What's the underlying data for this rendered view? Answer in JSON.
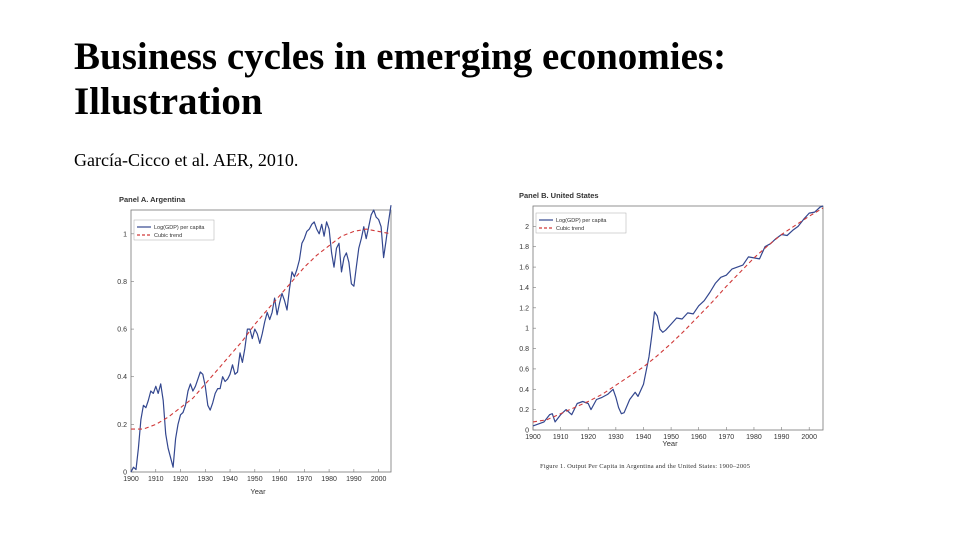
{
  "slide": {
    "title": "Business cycles in emerging economies: Illustration",
    "subtitle": "García-Cicco et al. AER, 2010."
  },
  "chart_data": [
    {
      "type": "line",
      "title": "Panel A. Argentina",
      "xlabel": "Year",
      "ylabel": "",
      "xlim": [
        1900,
        2005
      ],
      "ylim": [
        0,
        1.1
      ],
      "xticks": [
        1900,
        1910,
        1920,
        1930,
        1940,
        1950,
        1960,
        1970,
        1980,
        1990,
        2000
      ],
      "yticks": [
        0,
        0.2,
        0.4,
        0.6,
        0.8,
        1
      ],
      "ytick_labels": [
        "0",
        "0.2",
        "0.4",
        "0.6",
        "0.8",
        "1"
      ],
      "legend": [
        "Log(GDP) per capita",
        "Cubic trend"
      ],
      "legend_position": "top-left",
      "series": [
        {
          "name": "Log(GDP) per capita",
          "color": "#33478f",
          "style": "solid",
          "x": [
            1900,
            1901,
            1902,
            1903,
            1904,
            1905,
            1906,
            1907,
            1908,
            1909,
            1910,
            1911,
            1912,
            1913,
            1914,
            1915,
            1916,
            1917,
            1918,
            1919,
            1920,
            1921,
            1922,
            1923,
            1924,
            1925,
            1926,
            1927,
            1928,
            1929,
            1930,
            1931,
            1932,
            1933,
            1934,
            1935,
            1936,
            1937,
            1938,
            1939,
            1940,
            1941,
            1942,
            1943,
            1944,
            1945,
            1946,
            1947,
            1948,
            1949,
            1950,
            1951,
            1952,
            1953,
            1954,
            1955,
            1956,
            1957,
            1958,
            1959,
            1960,
            1961,
            1962,
            1963,
            1964,
            1965,
            1966,
            1967,
            1968,
            1969,
            1970,
            1971,
            1972,
            1973,
            1974,
            1975,
            1976,
            1977,
            1978,
            1979,
            1980,
            1981,
            1982,
            1983,
            1984,
            1985,
            1986,
            1987,
            1988,
            1989,
            1990,
            1991,
            1992,
            1993,
            1994,
            1995,
            1996,
            1997,
            1998,
            1999,
            2000,
            2001,
            2002,
            2003,
            2004,
            2005
          ],
          "values": [
            0.0,
            0.02,
            0.01,
            0.1,
            0.22,
            0.28,
            0.27,
            0.3,
            0.34,
            0.33,
            0.36,
            0.33,
            0.37,
            0.3,
            0.16,
            0.1,
            0.06,
            0.02,
            0.14,
            0.2,
            0.24,
            0.25,
            0.28,
            0.34,
            0.37,
            0.34,
            0.36,
            0.39,
            0.42,
            0.41,
            0.36,
            0.28,
            0.26,
            0.29,
            0.33,
            0.35,
            0.35,
            0.4,
            0.38,
            0.39,
            0.41,
            0.45,
            0.41,
            0.42,
            0.5,
            0.46,
            0.52,
            0.6,
            0.6,
            0.56,
            0.6,
            0.58,
            0.54,
            0.58,
            0.63,
            0.67,
            0.64,
            0.67,
            0.73,
            0.66,
            0.71,
            0.75,
            0.72,
            0.68,
            0.77,
            0.84,
            0.82,
            0.85,
            0.89,
            0.96,
            0.98,
            1.01,
            1.02,
            1.04,
            1.05,
            1.02,
            1.0,
            1.04,
            0.99,
            1.05,
            1.02,
            0.92,
            0.86,
            0.94,
            0.96,
            0.84,
            0.9,
            0.92,
            0.88,
            0.79,
            0.78,
            0.86,
            0.94,
            0.98,
            1.03,
            0.98,
            1.03,
            1.08,
            1.1,
            1.07,
            1.06,
            1.03,
            0.9,
            0.97,
            1.05,
            1.12
          ]
        },
        {
          "name": "Cubic trend",
          "color": "#d03a3a",
          "style": "dashed",
          "x": [
            1900,
            1905,
            1910,
            1915,
            1920,
            1925,
            1930,
            1935,
            1940,
            1945,
            1950,
            1955,
            1960,
            1965,
            1970,
            1975,
            1980,
            1985,
            1990,
            1995,
            2000,
            2005
          ],
          "values": [
            0.18,
            0.18,
            0.2,
            0.23,
            0.27,
            0.31,
            0.37,
            0.43,
            0.49,
            0.55,
            0.62,
            0.68,
            0.74,
            0.8,
            0.86,
            0.91,
            0.95,
            0.99,
            1.01,
            1.02,
            1.01,
            1.0
          ]
        }
      ]
    },
    {
      "type": "line",
      "title": "Panel B. United States",
      "xlabel": "Year",
      "ylabel": "",
      "xlim": [
        1900,
        2005
      ],
      "ylim": [
        0,
        2.2
      ],
      "xticks": [
        1900,
        1910,
        1920,
        1930,
        1940,
        1950,
        1960,
        1970,
        1980,
        1990,
        2000
      ],
      "yticks": [
        0,
        0.2,
        0.4,
        0.6,
        0.8,
        1,
        1.2,
        1.4,
        1.6,
        1.8,
        2
      ],
      "ytick_labels": [
        "0",
        "0.2",
        "0.4",
        "0.6",
        "0.8",
        "1",
        "1.2",
        "1.4",
        "1.6",
        "1.8",
        "2"
      ],
      "legend": [
        "Log(GDP) per capita",
        "Cubic trend"
      ],
      "legend_position": "top-left",
      "caption": "Figure 1. Output Per Capita in Argentina and the United States: 1900–2005",
      "series": [
        {
          "name": "Log(GDP) per capita",
          "color": "#33478f",
          "style": "solid",
          "x": [
            1900,
            1902,
            1904,
            1906,
            1907,
            1908,
            1910,
            1912,
            1914,
            1916,
            1918,
            1920,
            1921,
            1923,
            1925,
            1927,
            1929,
            1930,
            1931,
            1932,
            1933,
            1935,
            1937,
            1938,
            1940,
            1942,
            1943,
            1944,
            1945,
            1946,
            1947,
            1948,
            1950,
            1952,
            1954,
            1956,
            1958,
            1960,
            1962,
            1964,
            1966,
            1968,
            1970,
            1972,
            1974,
            1976,
            1978,
            1980,
            1982,
            1984,
            1986,
            1988,
            1990,
            1992,
            1994,
            1996,
            1998,
            2000,
            2002,
            2004,
            2005
          ],
          "values": [
            0.04,
            0.06,
            0.08,
            0.15,
            0.16,
            0.08,
            0.15,
            0.2,
            0.15,
            0.26,
            0.28,
            0.26,
            0.2,
            0.3,
            0.32,
            0.35,
            0.4,
            0.32,
            0.22,
            0.16,
            0.17,
            0.3,
            0.37,
            0.33,
            0.45,
            0.72,
            0.93,
            1.16,
            1.12,
            0.99,
            0.96,
            0.98,
            1.04,
            1.1,
            1.09,
            1.15,
            1.14,
            1.22,
            1.27,
            1.35,
            1.44,
            1.5,
            1.52,
            1.58,
            1.6,
            1.62,
            1.7,
            1.69,
            1.68,
            1.8,
            1.83,
            1.88,
            1.92,
            1.91,
            1.96,
            2.0,
            2.07,
            2.13,
            2.14,
            2.19,
            2.2
          ]
        },
        {
          "name": "Cubic trend",
          "color": "#d03a3a",
          "style": "dashed",
          "x": [
            1900,
            1905,
            1910,
            1915,
            1920,
            1925,
            1930,
            1935,
            1940,
            1945,
            1950,
            1955,
            1960,
            1965,
            1970,
            1975,
            1980,
            1985,
            1990,
            1995,
            2000,
            2005
          ],
          "values": [
            0.08,
            0.1,
            0.16,
            0.22,
            0.28,
            0.35,
            0.44,
            0.53,
            0.62,
            0.73,
            0.85,
            0.98,
            1.12,
            1.26,
            1.41,
            1.55,
            1.69,
            1.81,
            1.92,
            2.01,
            2.1,
            2.18
          ]
        }
      ]
    }
  ]
}
